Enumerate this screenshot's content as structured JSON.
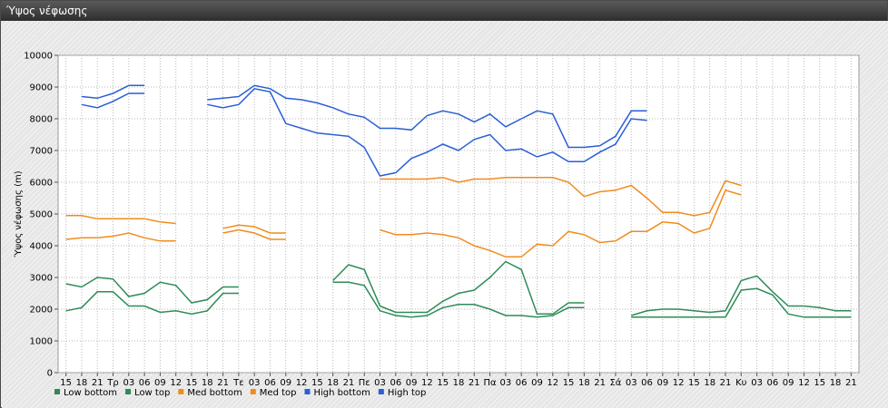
{
  "window": {
    "title": "Ύψος νέφωσης"
  },
  "chart_data": {
    "type": "line",
    "title": "",
    "xlabel": "",
    "ylabel": "Ύψος νέφωσης (m)",
    "ylim": [
      0,
      10000
    ],
    "yticks": [
      0,
      1000,
      2000,
      3000,
      4000,
      5000,
      6000,
      7000,
      8000,
      9000,
      10000
    ],
    "grid": true,
    "legend_position": "bottom",
    "categories": [
      "15",
      "18",
      "21",
      "Τρ",
      "03",
      "06",
      "09",
      "12",
      "15",
      "18",
      "21",
      "Τε",
      "03",
      "06",
      "09",
      "12",
      "15",
      "18",
      "21",
      "Πε",
      "03",
      "06",
      "09",
      "12",
      "15",
      "18",
      "21",
      "Πα",
      "03",
      "06",
      "09",
      "12",
      "15",
      "18",
      "21",
      "Σά",
      "03",
      "06",
      "09",
      "12",
      "15",
      "18",
      "21",
      "Κυ",
      "03",
      "06",
      "09",
      "12",
      "15",
      "18",
      "21"
    ],
    "series": [
      {
        "name": "Low bottom",
        "color": "#2e8b57",
        "values": [
          1950,
          2050,
          2550,
          2550,
          2100,
          2100,
          1900,
          1950,
          1850,
          1950,
          2500,
          2500,
          null,
          null,
          null,
          null,
          null,
          2850,
          2850,
          2750,
          1950,
          1800,
          1750,
          1800,
          2050,
          2150,
          2150,
          2000,
          1800,
          1800,
          1750,
          1800,
          2050,
          2050,
          null,
          null,
          1750,
          1750,
          1750,
          1750,
          1750,
          1750,
          1750,
          2600,
          2650,
          2450,
          1850,
          1750,
          1750,
          1750,
          1750
        ]
      },
      {
        "name": "Low top",
        "color": "#2e8b57",
        "values": [
          2800,
          2700,
          3000,
          2950,
          2400,
          2500,
          2850,
          2750,
          2200,
          2300,
          2700,
          2700,
          null,
          null,
          null,
          null,
          null,
          2900,
          3400,
          3250,
          2100,
          1900,
          1900,
          1900,
          2250,
          2500,
          2600,
          3000,
          3500,
          3250,
          1850,
          1850,
          2200,
          2200,
          null,
          null,
          1800,
          1950,
          2000,
          2000,
          1950,
          1900,
          1950,
          2900,
          3050,
          2550,
          2100,
          2100,
          2050,
          1950,
          1950
        ]
      },
      {
        "name": "Med bottom",
        "color": "#f08c1e",
        "values": [
          4200,
          4250,
          4250,
          4300,
          4400,
          4250,
          4150,
          4150,
          null,
          null,
          4400,
          4500,
          4400,
          4200,
          4200,
          null,
          null,
          null,
          null,
          null,
          4500,
          4350,
          4350,
          4400,
          4350,
          4250,
          4000,
          3850,
          3650,
          3650,
          4050,
          4000,
          4450,
          4350,
          4100,
          4150,
          4450,
          4450,
          4750,
          4700,
          4400,
          4550,
          5750,
          5600,
          null,
          null,
          null,
          null,
          null,
          null,
          null
        ]
      },
      {
        "name": "Med top",
        "color": "#f08c1e",
        "values": [
          4950,
          4950,
          4850,
          4850,
          4850,
          4850,
          4750,
          4700,
          null,
          null,
          4550,
          4650,
          4600,
          4400,
          4400,
          null,
          null,
          null,
          null,
          null,
          6100,
          6100,
          6100,
          6100,
          6150,
          6000,
          6100,
          6100,
          6150,
          6150,
          6150,
          6150,
          6000,
          5550,
          5700,
          5750,
          5900,
          5500,
          5050,
          5050,
          4950,
          5050,
          6050,
          5900,
          null,
          null,
          null,
          null,
          null,
          null,
          null
        ]
      },
      {
        "name": "High bottom",
        "color": "#2a5fd6",
        "values": [
          null,
          8450,
          8350,
          8550,
          8800,
          8800,
          null,
          null,
          null,
          8450,
          8350,
          8450,
          8950,
          8850,
          7850,
          7700,
          7550,
          7500,
          7450,
          7100,
          6200,
          6300,
          6750,
          6950,
          7200,
          7000,
          7350,
          7500,
          7000,
          7050,
          6800,
          6950,
          6650,
          6650,
          6950,
          7200,
          8000,
          7950,
          null,
          null,
          null,
          null,
          null,
          null,
          null,
          null,
          null,
          null,
          null,
          null,
          null
        ]
      },
      {
        "name": "High top",
        "color": "#2a5fd6",
        "values": [
          null,
          8700,
          8650,
          8800,
          9050,
          9050,
          null,
          null,
          null,
          8600,
          8650,
          8700,
          9050,
          8950,
          8650,
          8600,
          8500,
          8350,
          8150,
          8050,
          7700,
          7700,
          7650,
          8100,
          8250,
          8150,
          7900,
          8150,
          7750,
          8000,
          8250,
          8150,
          7100,
          7100,
          7150,
          7450,
          8250,
          8250,
          null,
          null,
          null,
          null,
          null,
          null,
          null,
          null,
          null,
          null,
          null,
          null,
          null
        ]
      }
    ]
  }
}
